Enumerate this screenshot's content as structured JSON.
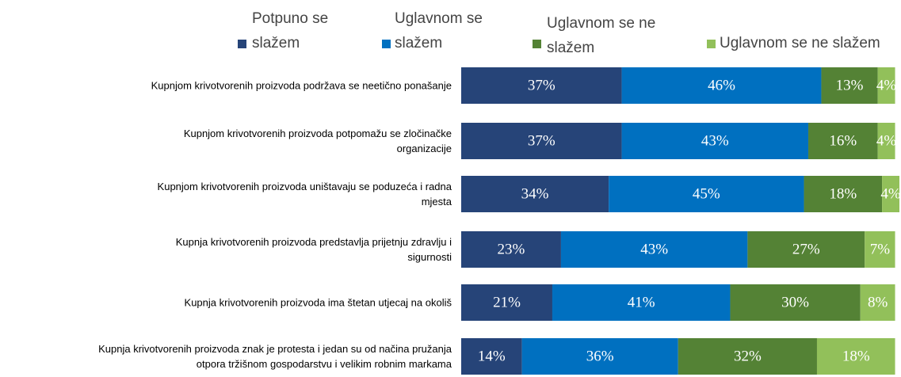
{
  "chart_data": {
    "type": "stacked-bar-horizontal",
    "categories": [
      "Kupnjom krivotvorenih proizvoda podržava se neetično ponašanje",
      "Kupnjom krivotvorenih proizvoda potpomažu se zločinačke\norganizacije",
      "Kupnjom krivotvorenih proizvoda uništavaju se poduzeća i radna\nmjesta",
      "Kupnja krivotvorenih proizvoda predstavlja prijetnju zdravlju i\nsigurnosti",
      "Kupnja krivotvorenih proizvoda ima štetan utjecaj na okoliš",
      "Kupnja krivotvorenih proizvoda znak je protesta i jedan su od načina pružanja\notpora tržišnom gospodarstvu i velikim robnim markama"
    ],
    "series": [
      {
        "name": "Potpuno se\nslažem",
        "color": "#264478",
        "values": [
          37,
          37,
          34,
          23,
          21,
          14
        ],
        "value_labels": [
          "37%",
          "37%",
          "34%",
          "23%",
          "21%",
          "14%"
        ]
      },
      {
        "name": "Uglavnom se\nslažem",
        "color": "#0070c0",
        "values": [
          46,
          43,
          45,
          43,
          41,
          36
        ],
        "value_labels": [
          "46%",
          "43%",
          "45%",
          "43%",
          "41%",
          "36%"
        ]
      },
      {
        "name": "Uglavnom se ne\nslažem",
        "color": "#548235",
        "values": [
          13,
          16,
          18,
          27,
          30,
          32
        ],
        "value_labels": [
          "13%",
          "16%",
          "18%",
          "27%",
          "30%",
          "32%"
        ]
      },
      {
        "name": "Uglavnom se ne slažem",
        "color": "#92c05a",
        "values": [
          4,
          4,
          4,
          7,
          8,
          18
        ],
        "value_labels": [
          "4%",
          "4%",
          "4%",
          "7%",
          "8%",
          "18%"
        ]
      }
    ],
    "legend": "top"
  }
}
